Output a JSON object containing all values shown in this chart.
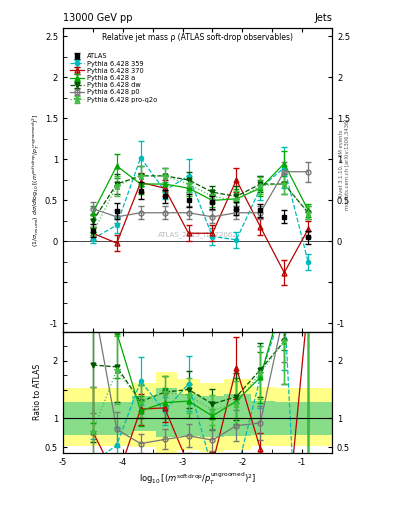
{
  "title_top": "13000 GeV pp",
  "title_right": "Jets",
  "plot_title": "Relative jet mass ρ (ATLAS soft-drop observables)",
  "watermark": "ATLAS_2019_I1772062",
  "right_label1": "Rivet 3.1.10, ≥ 3M events",
  "right_label2": "mcplots.cern.ch [arXiv:1306.3436]",
  "xlabel": "log$_{10}$[(m$^{\\mathrm{soft\\,drop}}$/p$_T^{\\mathrm{ungroomed}}$)$^2$]",
  "ylabel_main": "(1/σ$_{\\mathrm{resumi}}$) dσ/d log$_{10}$[(m$^{\\mathrm{soft\\,drop}}$/p$_T^{\\mathrm{ungroomed}}$)$^2$]",
  "ylabel_ratio": "Ratio to ATLAS",
  "x_values": [
    -4.5,
    -4.1,
    -3.7,
    -3.3,
    -2.9,
    -2.5,
    -2.1,
    -1.7,
    -1.3,
    -0.9
  ],
  "atlas_y": [
    0.13,
    0.37,
    0.62,
    0.55,
    0.5,
    0.48,
    0.4,
    0.38,
    0.3,
    0.05
  ],
  "atlas_yerr": [
    0.08,
    0.1,
    0.1,
    0.08,
    0.08,
    0.08,
    0.08,
    0.08,
    0.08,
    0.08
  ],
  "py359_y": [
    0.03,
    0.2,
    1.02,
    0.62,
    0.8,
    0.06,
    0.02,
    0.65,
    0.9,
    -0.25
  ],
  "py359_yerr": [
    0.05,
    0.1,
    0.2,
    0.1,
    0.2,
    0.1,
    0.1,
    0.15,
    0.25,
    0.1
  ],
  "py370_y": [
    0.1,
    -0.02,
    0.72,
    0.65,
    0.1,
    0.1,
    0.75,
    0.18,
    -0.38,
    0.15
  ],
  "py370_yerr": [
    0.08,
    0.1,
    0.12,
    0.1,
    0.1,
    0.1,
    0.15,
    0.1,
    0.15,
    0.1
  ],
  "pya_y": [
    0.35,
    0.92,
    0.7,
    0.7,
    0.65,
    0.5,
    0.52,
    0.65,
    0.95,
    0.38
  ],
  "pya_yerr": [
    0.08,
    0.15,
    0.12,
    0.1,
    0.1,
    0.08,
    0.12,
    0.1,
    0.15,
    0.08
  ],
  "pydw_y": [
    0.25,
    0.7,
    0.8,
    0.8,
    0.75,
    0.6,
    0.55,
    0.7,
    0.7,
    0.35
  ],
  "pydw_yerr": [
    0.08,
    0.12,
    0.12,
    0.1,
    0.1,
    0.08,
    0.12,
    0.1,
    0.12,
    0.08
  ],
  "pyp0_y": [
    0.4,
    0.3,
    0.35,
    0.35,
    0.35,
    0.3,
    0.35,
    0.35,
    0.85,
    0.85
  ],
  "pyp0_yerr": [
    0.08,
    0.08,
    0.08,
    0.08,
    0.08,
    0.08,
    0.08,
    0.08,
    0.12,
    0.12
  ],
  "pyq2o_y": [
    0.1,
    0.68,
    0.8,
    0.8,
    0.7,
    0.55,
    0.5,
    0.68,
    0.7,
    0.35
  ],
  "pyq2o_yerr": [
    0.08,
    0.12,
    0.12,
    0.1,
    0.1,
    0.08,
    0.12,
    0.1,
    0.12,
    0.08
  ],
  "xlim": [
    -5.0,
    -0.5
  ],
  "ylim_main": [
    -1.1,
    2.6
  ],
  "ylim_ratio": [
    0.4,
    2.5
  ],
  "yticks_main": [
    -1.0,
    -0.5,
    0.0,
    0.5,
    1.0,
    1.5,
    2.0,
    2.5
  ],
  "ytick_labels_main": [
    "-1",
    "",
    "0",
    "0.5",
    "1",
    "1.5",
    "2",
    "2.5"
  ],
  "yticks_ratio": [
    0.5,
    1.0,
    1.5,
    2.0,
    2.5
  ],
  "ytick_labels_ratio": [
    "0.5",
    "1",
    "",
    "2",
    ""
  ],
  "xticks": [
    -5,
    -4,
    -3,
    -2,
    -1
  ],
  "xtick_labels": [
    "-5",
    "-4",
    "-3",
    "-2",
    "-1"
  ],
  "color_atlas": "#000000",
  "color_py359": "#00BBBB",
  "color_py370": "#BB0000",
  "color_pya": "#00AA00",
  "color_pydw": "#005500",
  "color_pyp0": "#777777",
  "color_pyq2o": "#44BB44",
  "band_x_edges": [
    -5.0,
    -4.3,
    -3.85,
    -3.45,
    -3.1,
    -2.7,
    -2.3,
    -1.85,
    -1.45,
    -1.1,
    -0.5
  ],
  "green_band_lo": [
    0.72,
    0.72,
    0.78,
    0.68,
    0.7,
    0.68,
    0.7,
    0.72,
    0.72,
    0.72
  ],
  "green_band_hi": [
    1.28,
    1.28,
    1.38,
    1.52,
    1.42,
    1.38,
    1.42,
    1.3,
    1.28,
    1.28
  ],
  "yellow_band_lo": [
    0.52,
    0.52,
    0.5,
    0.4,
    0.45,
    0.42,
    0.45,
    0.52,
    0.52,
    0.52
  ],
  "yellow_band_hi": [
    1.52,
    1.52,
    1.62,
    1.8,
    1.68,
    1.62,
    1.68,
    1.55,
    1.52,
    1.52
  ]
}
